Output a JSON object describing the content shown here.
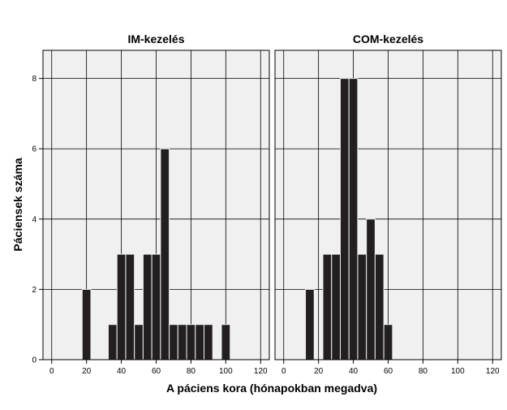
{
  "chart_data": {
    "type": "bar",
    "xlabel": "A páciens kora (hónapokban megadva)",
    "ylabel": "Páciensek száma",
    "xlim": [
      -5,
      125
    ],
    "ylim": [
      0,
      8.8
    ],
    "xticks": [
      0,
      20,
      40,
      60,
      80,
      100,
      120
    ],
    "yticks": [
      0,
      2,
      4,
      6,
      8
    ],
    "grid": true,
    "bin_width": 5,
    "colors": {
      "bar": "#231f20",
      "plot_bg": "#f0f0f0",
      "grid": "#000000"
    },
    "panels": [
      {
        "title": "IM-kezelés",
        "bins": [
          {
            "x0": 17.5,
            "count": 2
          },
          {
            "x0": 32.5,
            "count": 1
          },
          {
            "x0": 37.5,
            "count": 3
          },
          {
            "x0": 42.5,
            "count": 3
          },
          {
            "x0": 47.5,
            "count": 1
          },
          {
            "x0": 52.5,
            "count": 3
          },
          {
            "x0": 57.5,
            "count": 3
          },
          {
            "x0": 62.5,
            "count": 6
          },
          {
            "x0": 67.5,
            "count": 1
          },
          {
            "x0": 72.5,
            "count": 1
          },
          {
            "x0": 77.5,
            "count": 1
          },
          {
            "x0": 82.5,
            "count": 1
          },
          {
            "x0": 87.5,
            "count": 1
          },
          {
            "x0": 97.5,
            "count": 1
          }
        ]
      },
      {
        "title": "COM-kezelés",
        "bins": [
          {
            "x0": 12.5,
            "count": 2
          },
          {
            "x0": 22.5,
            "count": 3
          },
          {
            "x0": 27.5,
            "count": 3
          },
          {
            "x0": 32.5,
            "count": 8
          },
          {
            "x0": 37.5,
            "count": 8
          },
          {
            "x0": 42.5,
            "count": 3
          },
          {
            "x0": 47.5,
            "count": 4
          },
          {
            "x0": 52.5,
            "count": 3
          },
          {
            "x0": 57.5,
            "count": 1
          }
        ]
      }
    ]
  }
}
